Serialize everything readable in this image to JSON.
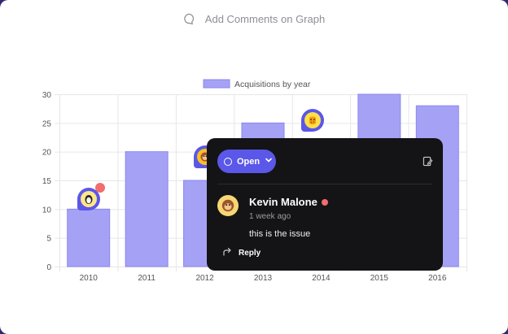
{
  "header": {
    "label": "Add Comments on Graph",
    "icon": "comment-bubble-icon"
  },
  "chart_data": {
    "type": "bar",
    "categories": [
      "2010",
      "2011",
      "2012",
      "2013",
      "2014",
      "2015",
      "2016"
    ],
    "series": [
      {
        "name": "Acquisitions by year",
        "values": [
          10,
          20,
          15,
          25,
          22,
          30,
          28
        ]
      }
    ],
    "ylim": [
      0,
      30
    ],
    "yticks": [
      0,
      5,
      10,
      15,
      20,
      25,
      30
    ],
    "grid": true,
    "legend": "top-center",
    "colors": {
      "bar_fill": "#a5a2f5",
      "bar_stroke": "#8a86f0"
    }
  },
  "markers": [
    {
      "category": "2010",
      "value": 11.8,
      "avatar": "penguin-avatar",
      "face_color": "#fde68a",
      "has_unread": true
    },
    {
      "category": "2012",
      "value": 19.1,
      "avatar": "monkey-avatar",
      "face_color": "#fbbf24",
      "has_unread": true
    },
    {
      "category": "2014",
      "value": 25.5,
      "avatar": "giraffe-avatar",
      "face_color": "#fde047",
      "has_unread": false
    }
  ],
  "comment_popup": {
    "status_label": "Open",
    "author": "Kevin Malone",
    "time": "1 week ago",
    "text": "this is the issue",
    "reply_label": "Reply",
    "colors": {
      "accent": "#5b57e8",
      "online_dot": "#f26d6d"
    }
  }
}
